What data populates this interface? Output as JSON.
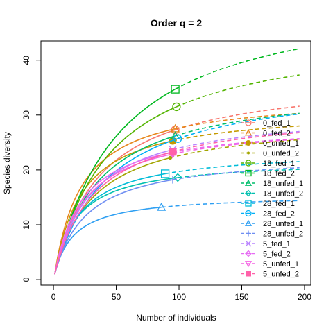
{
  "chart_data": {
    "type": "line",
    "title": "Order q = 2",
    "xlabel": "Number of individuals",
    "ylabel": "Species diversity",
    "xlim": [
      -10,
      205
    ],
    "ylim": [
      -1,
      43.5
    ],
    "xticks": [
      0,
      50,
      100,
      150,
      200
    ],
    "yticks": [
      0,
      10,
      20,
      30,
      40
    ],
    "grid": false,
    "legend_position": "bottom-right",
    "line_styles": {
      "interpolated": "solid",
      "extrapolated": "dashed"
    },
    "x_max": 196,
    "series": [
      {
        "name": "0_fed_1",
        "color": "#F8766D",
        "marker": "circle",
        "end": [
          97,
          27.3
        ],
        "last": 31.6
      },
      {
        "name": "0_fed_2",
        "color": "#E7861B",
        "marker": "triangle",
        "end": [
          97,
          27.5
        ],
        "last": 30.3
      },
      {
        "name": "0_unfed_1",
        "color": "#C49A00",
        "marker": "filled-circle",
        "end": [
          95,
          25.3
        ],
        "last": 28.0
      },
      {
        "name": "0_unfed_2",
        "color": "#A3A500",
        "marker": "dot",
        "end": [
          93,
          22.2
        ],
        "last": 25.5
      },
      {
        "name": "18_fed_1",
        "color": "#53B400",
        "marker": "circle",
        "end": [
          98,
          31.5
        ],
        "last": 37.3
      },
      {
        "name": "18_fed_2",
        "color": "#00B81F",
        "marker": "square",
        "end": [
          97,
          34.7
        ],
        "last": 42.1
      },
      {
        "name": "18_unfed_1",
        "color": "#00BE6C",
        "marker": "triangle",
        "end": [
          97,
          26.2
        ],
        "last": 30.3
      },
      {
        "name": "18_unfed_2",
        "color": "#00C0AF",
        "marker": "diamond",
        "end": [
          99,
          18.6
        ],
        "last": 20.1
      },
      {
        "name": "28_fed_1",
        "color": "#00BCD8",
        "marker": "square",
        "end": [
          89,
          19.3
        ],
        "last": 21.5
      },
      {
        "name": "28_fed_2",
        "color": "#00B0F6",
        "marker": "circle",
        "end": [
          99,
          25.7
        ],
        "last": 30.2
      },
      {
        "name": "28_unfed_1",
        "color": "#2E9FF2",
        "marker": "triangle",
        "end": [
          86,
          13.2
        ],
        "last": 14.4
      },
      {
        "name": "28_unfed_2",
        "color": "#6F8EF2",
        "marker": "plus",
        "end": [
          95,
          18.2
        ],
        "last": 20.4
      },
      {
        "name": "5_fed_1",
        "color": "#B983FF",
        "marker": "x",
        "end": [
          95,
          23.7
        ],
        "last": 27.0
      },
      {
        "name": "5_fed_2",
        "color": "#E76BF3",
        "marker": "diamond",
        "end": [
          95,
          23.2
        ],
        "last": 25.7
      },
      {
        "name": "5_unfed_1",
        "color": "#F564E3",
        "marker": "triangle-down",
        "end": [
          95,
          22.9
        ],
        "last": 25.6
      },
      {
        "name": "5_unfed_2",
        "color": "#FF61A9",
        "marker": "filled-square",
        "end": [
          95,
          23.3
        ],
        "last": 26.8
      }
    ]
  }
}
